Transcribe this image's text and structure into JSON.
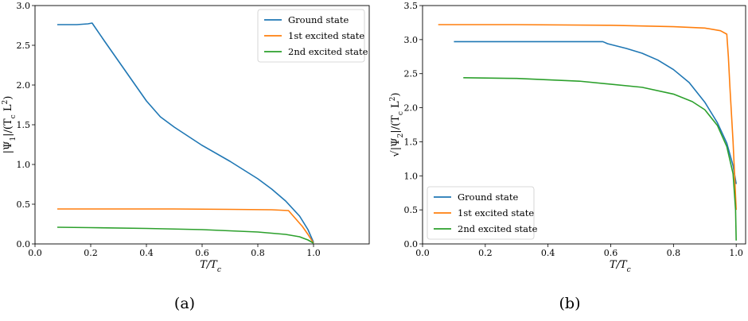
{
  "chart_data": [
    {
      "type": "line",
      "panel_caption": "(a)",
      "xlabel": "T/T_c",
      "ylabel": "|Ψ_1|/(T_c L^2)",
      "xlim": [
        0.0,
        1.2
      ],
      "ylim": [
        0.0,
        3.0
      ],
      "xticks": [
        "0.0",
        "0.2",
        "0.4",
        "0.6",
        "0.8",
        "1.0"
      ],
      "yticks": [
        "0.0",
        "0.5",
        "1.0",
        "1.5",
        "2.0",
        "2.5",
        "3.0"
      ],
      "grid": false,
      "legend_position": "top-right",
      "series": [
        {
          "name": "Ground state",
          "color": "#1f77b4",
          "x": [
            0.08,
            0.15,
            0.19,
            0.205,
            0.25,
            0.3,
            0.35,
            0.4,
            0.45,
            0.5,
            0.6,
            0.7,
            0.8,
            0.85,
            0.9,
            0.95,
            0.98,
            1.0
          ],
          "y": [
            2.76,
            2.76,
            2.77,
            2.78,
            2.55,
            2.3,
            2.05,
            1.8,
            1.6,
            1.47,
            1.24,
            1.04,
            0.82,
            0.69,
            0.54,
            0.35,
            0.18,
            0.02
          ]
        },
        {
          "name": "1st excited state",
          "color": "#ff7f0e",
          "x": [
            0.08,
            0.3,
            0.5,
            0.7,
            0.85,
            0.91,
            0.93,
            0.96,
            0.98,
            1.0
          ],
          "y": [
            0.44,
            0.44,
            0.44,
            0.435,
            0.43,
            0.42,
            0.34,
            0.22,
            0.12,
            0.01
          ]
        },
        {
          "name": "2nd excited state",
          "color": "#2ca02c",
          "x": [
            0.08,
            0.2,
            0.4,
            0.6,
            0.8,
            0.9,
            0.95,
            0.98,
            1.0
          ],
          "y": [
            0.21,
            0.205,
            0.195,
            0.18,
            0.15,
            0.12,
            0.09,
            0.05,
            0.01
          ]
        }
      ]
    },
    {
      "type": "line",
      "panel_caption": "(b)",
      "xlabel": "T/T_c",
      "ylabel": "√|Ψ_2|/(T_c L^2)",
      "xlim": [
        0.0,
        1.03
      ],
      "ylim": [
        0.0,
        3.5
      ],
      "xticks": [
        "0.0",
        "0.2",
        "0.4",
        "0.6",
        "0.8",
        "1.0"
      ],
      "yticks": [
        "0.0",
        "0.5",
        "1.0",
        "1.5",
        "2.0",
        "2.5",
        "3.0",
        "3.5"
      ],
      "grid": false,
      "legend_position": "bottom-left",
      "series": [
        {
          "name": "Ground state",
          "color": "#1f77b4",
          "x": [
            0.1,
            0.3,
            0.5,
            0.575,
            0.59,
            0.65,
            0.7,
            0.75,
            0.8,
            0.85,
            0.9,
            0.94,
            0.97,
            0.99,
            1.0
          ],
          "y": [
            2.97,
            2.97,
            2.97,
            2.97,
            2.94,
            2.87,
            2.8,
            2.7,
            2.56,
            2.37,
            2.08,
            1.78,
            1.48,
            1.15,
            0.88
          ]
        },
        {
          "name": "1st excited state",
          "color": "#ff7f0e",
          "x": [
            0.05,
            0.3,
            0.6,
            0.8,
            0.9,
            0.95,
            0.97,
            0.975,
            0.98,
            0.99,
            1.0
          ],
          "y": [
            3.22,
            3.22,
            3.21,
            3.19,
            3.17,
            3.13,
            3.08,
            2.75,
            2.3,
            1.5,
            0.5
          ]
        },
        {
          "name": "2nd excited state",
          "color": "#2ca02c",
          "x": [
            0.13,
            0.3,
            0.5,
            0.7,
            0.8,
            0.86,
            0.9,
            0.94,
            0.97,
            0.99,
            0.998,
            1.0
          ],
          "y": [
            2.44,
            2.43,
            2.39,
            2.3,
            2.2,
            2.09,
            1.97,
            1.74,
            1.43,
            1.03,
            0.5,
            0.05
          ]
        }
      ]
    }
  ]
}
